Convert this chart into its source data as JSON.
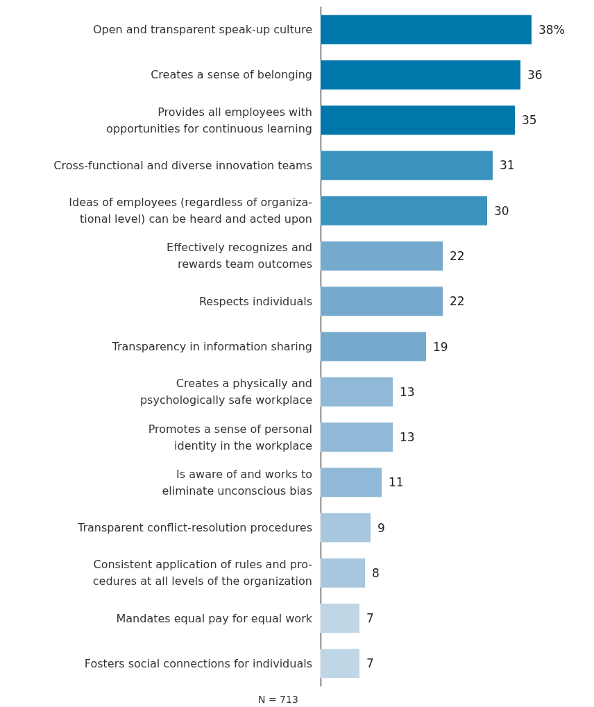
{
  "chart_data": {
    "type": "bar",
    "orientation": "horizontal",
    "categories": [
      "Open and transparent speak-up culture",
      "Creates a sense of belonging",
      "Provides all employees with\nopportunities for continuous learning",
      "Cross-functional and diverse innovation teams",
      "Ideas of employees (regardless of organiza-\ntional level) can be heard and acted upon",
      "Effectively recognizes and\nrewards team outcomes",
      "Respects individuals",
      "Transparency in information sharing",
      "Creates a physically and\npsychologically safe workplace",
      "Promotes a sense of personal\nidentity in the workplace",
      "Is aware of and works to\neliminate unconscious bias",
      "Transparent conflict-resolution procedures",
      "Consistent application of rules and pro-\ncedures at all levels of the organization",
      "Mandates equal pay for equal work",
      "Fosters social connections for individuals"
    ],
    "values": [
      38,
      36,
      35,
      31,
      30,
      22,
      22,
      19,
      13,
      13,
      11,
      9,
      8,
      7,
      7
    ],
    "value_labels": [
      "38%",
      "36",
      "35",
      "31",
      "30",
      "22",
      "22",
      "19",
      "13",
      "13",
      "11",
      "9",
      "8",
      "7",
      "7"
    ],
    "colors": [
      "#0077aa",
      "#0077aa",
      "#0077aa",
      "#3a93bf",
      "#3a93bf",
      "#76aacd",
      "#76aacd",
      "#76aacd",
      "#8fb9d6",
      "#8fb9d6",
      "#8fb9d6",
      "#a8c7de",
      "#a8c7de",
      "#bfd6e6",
      "#bfd6e6"
    ],
    "annotations": [
      "N = 713"
    ]
  }
}
